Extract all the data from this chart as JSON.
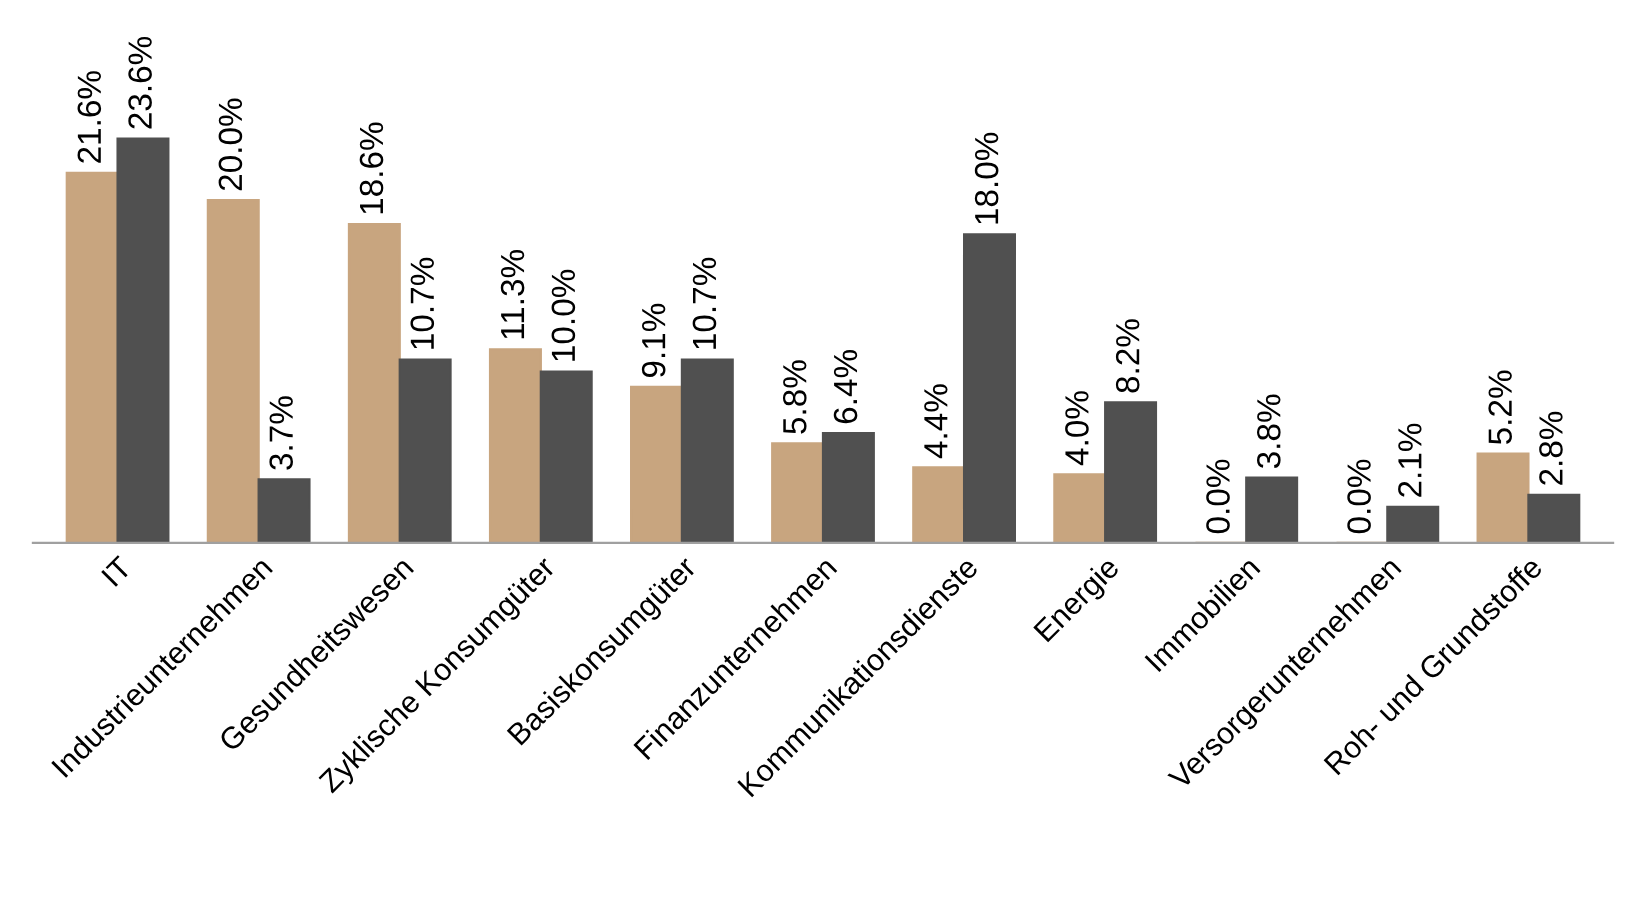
{
  "chart_data": {
    "type": "bar",
    "categories": [
      "IT",
      "Industrieunternehmen",
      "Gesundheitswesen",
      "Zyklische Konsumgüter",
      "Basiskonsumgüter",
      "Finanzunternehmen",
      "Kommunikationsdienste",
      "Energie",
      "Immobilien",
      "Versorgerunternehmen",
      "Roh- und Grundstoffe"
    ],
    "series": [
      {
        "color": "#c8a57f",
        "values": [
          21.6,
          20.0,
          18.6,
          11.3,
          9.1,
          5.8,
          4.4,
          4.0,
          0.0,
          0.0,
          5.2
        ],
        "value_labels": [
          "21.6%",
          "20.0%",
          "18.6%",
          "11.3%",
          "9.1%",
          "5.8%",
          "4.4%",
          "4.0%",
          "0.0%",
          "0.0%",
          "5.2%"
        ]
      },
      {
        "color": "#505050",
        "values": [
          23.6,
          3.7,
          10.7,
          10.0,
          10.7,
          6.4,
          18.0,
          8.2,
          3.8,
          2.1,
          2.8
        ],
        "value_labels": [
          "23.6%",
          "3.7%",
          "10.7%",
          "10.0%",
          "10.7%",
          "6.4%",
          "18.0%",
          "8.2%",
          "3.8%",
          "2.1%",
          "2.8%"
        ]
      }
    ],
    "grid": false
  }
}
